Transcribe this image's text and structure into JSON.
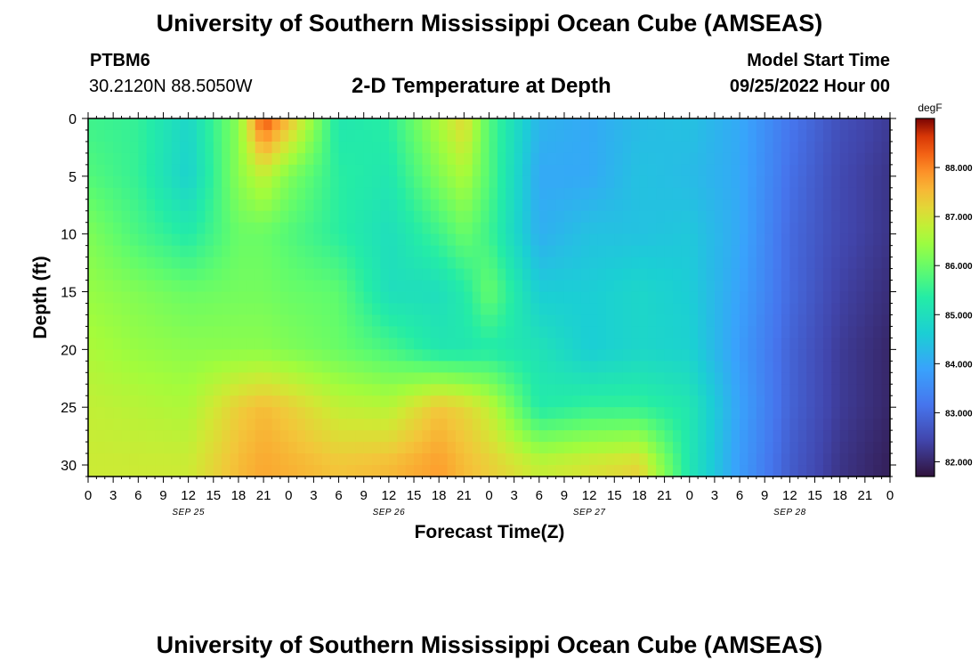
{
  "header": {
    "title": "University of Southern Mississippi Ocean Cube (AMSEAS)",
    "station": "PTBM6",
    "coords": "30.2120N  88.5050W",
    "subtitle": "2-D Temperature at Depth",
    "model_label": "Model Start Time",
    "model_time": "09/25/2022 Hour 00"
  },
  "footer": {
    "title": "University of Southern Mississippi Ocean Cube (AMSEAS)"
  },
  "chart_data": {
    "type": "heatmap",
    "title": "2-D Temperature at Depth",
    "xlabel": "Forecast Time(Z)",
    "ylabel": "Depth (ft)",
    "x_hour_range": [
      0,
      96
    ],
    "x_tick_labels": [
      "0",
      "3",
      "6",
      "9",
      "12",
      "15",
      "18",
      "21",
      "0",
      "3",
      "6",
      "9",
      "12",
      "15",
      "18",
      "21",
      "0",
      "3",
      "6",
      "9",
      "12",
      "15",
      "18",
      "21",
      "0",
      "3",
      "6",
      "9",
      "12",
      "15",
      "18",
      "21",
      "0"
    ],
    "day_labels": [
      "SEP 25",
      "SEP 26",
      "SEP 27",
      "SEP 28"
    ],
    "y_ticks": [
      0,
      5,
      10,
      15,
      20,
      25,
      30
    ],
    "ylim": [
      0,
      31
    ],
    "colorbar": {
      "unit": "degF",
      "range": [
        81.7,
        89.0
      ],
      "ticks": [
        "82.000",
        "83.000",
        "84.000",
        "85.000",
        "86.000",
        "87.000",
        "88.000"
      ],
      "tick_values": [
        82,
        83,
        84,
        85,
        86,
        87,
        88
      ]
    },
    "hours": [
      0,
      6,
      12,
      18,
      21,
      24,
      30,
      36,
      42,
      45,
      48,
      54,
      60,
      66,
      72,
      78,
      84,
      90,
      96
    ],
    "depths": [
      0,
      5,
      10,
      15,
      20,
      25,
      30
    ],
    "values": [
      [
        85.6,
        85.5,
        84.8,
        86.3,
        88.5,
        87.5,
        85.2,
        85.4,
        86.6,
        87.2,
        85.8,
        84.2,
        84.0,
        84.3,
        84.4,
        84.0,
        83.2,
        82.6,
        82.3
      ],
      [
        85.8,
        85.5,
        84.7,
        86.3,
        86.8,
        86.2,
        85.4,
        85.2,
        86.2,
        86.6,
        85.8,
        84.0,
        84.0,
        84.4,
        84.3,
        84.0,
        83.1,
        82.5,
        82.2
      ],
      [
        86.2,
        85.7,
        85.3,
        86.0,
        86.0,
        85.8,
        85.4,
        85.0,
        85.6,
        86.0,
        85.6,
        84.1,
        84.4,
        84.4,
        84.5,
        84.0,
        83.0,
        82.5,
        82.2
      ],
      [
        86.4,
        86.2,
        86.0,
        86.1,
        86.1,
        86.0,
        85.9,
        85.0,
        85.0,
        85.3,
        86.0,
        84.6,
        84.6,
        84.8,
        84.6,
        83.9,
        83.0,
        82.4,
        82.1
      ],
      [
        86.6,
        86.4,
        86.3,
        86.3,
        86.3,
        86.2,
        86.0,
        85.7,
        85.2,
        85.2,
        85.3,
        85.1,
        84.6,
        84.8,
        84.7,
        83.8,
        82.9,
        82.3,
        82.0
      ],
      [
        86.8,
        86.7,
        86.6,
        87.3,
        87.5,
        87.3,
        86.8,
        86.7,
        87.4,
        87.2,
        86.8,
        85.3,
        85.5,
        85.5,
        85.2,
        83.9,
        82.9,
        82.3,
        82.0
      ],
      [
        86.9,
        86.9,
        86.9,
        87.5,
        87.7,
        87.6,
        87.4,
        87.5,
        87.8,
        87.5,
        87.3,
        86.8,
        87.0,
        87.2,
        85.2,
        83.8,
        82.8,
        82.2,
        81.9
      ]
    ]
  }
}
